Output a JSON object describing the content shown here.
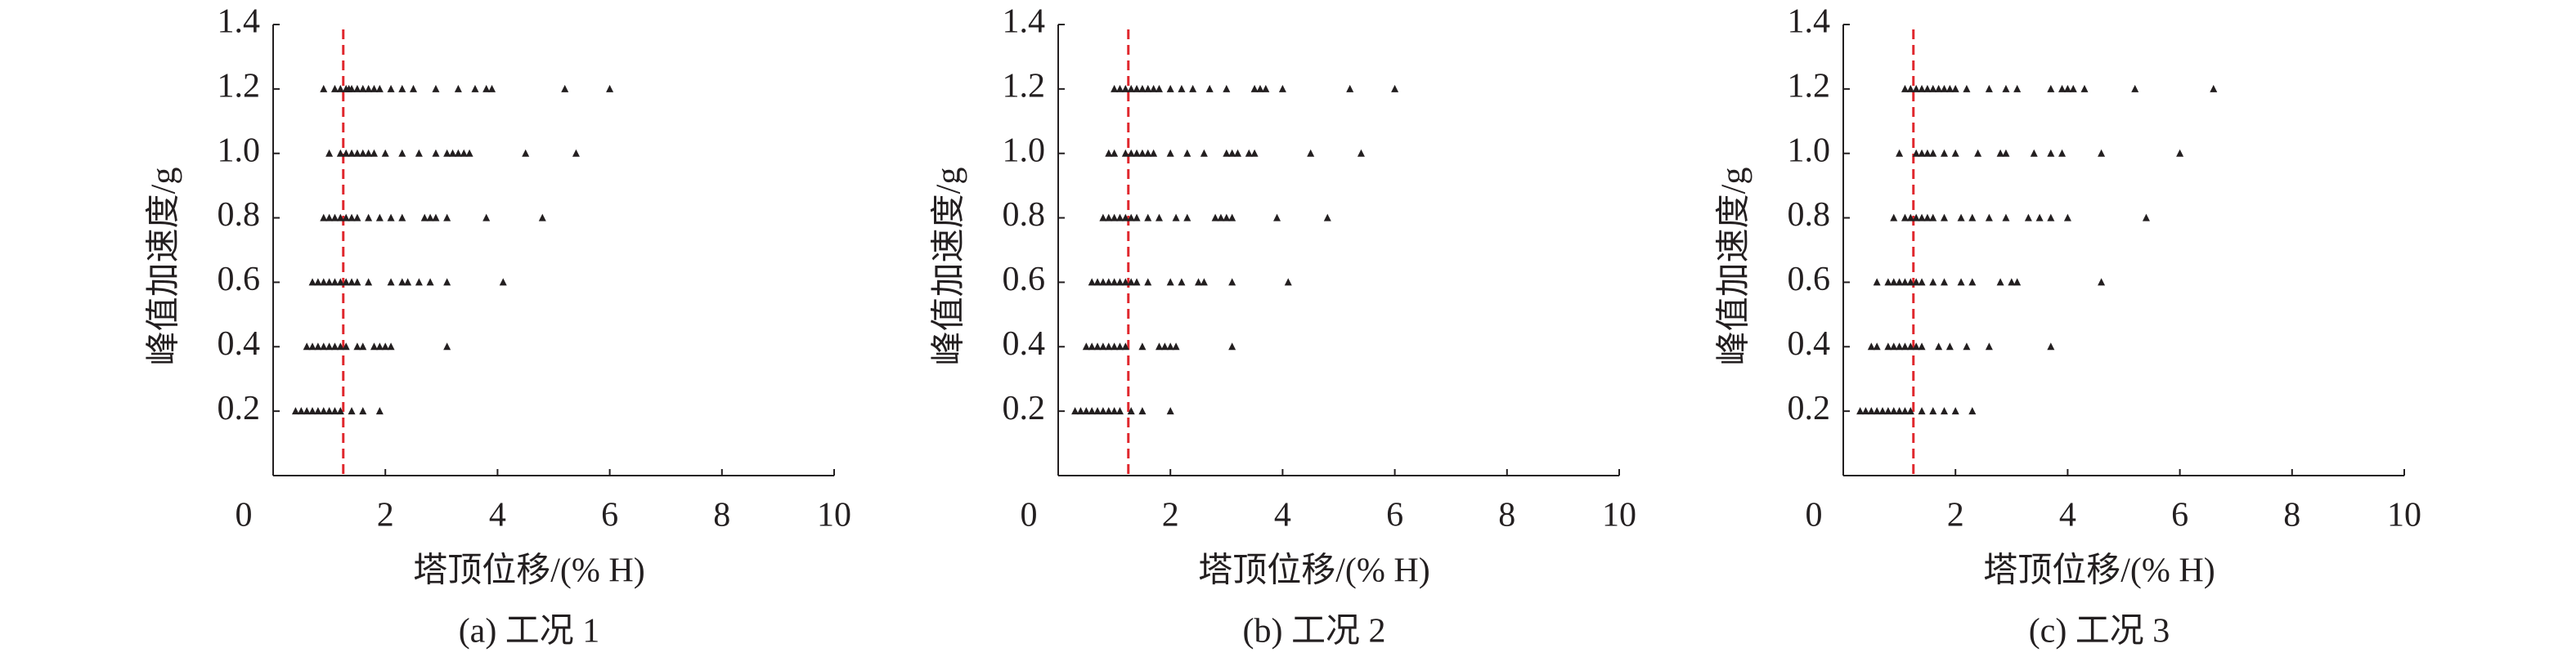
{
  "chart_data": [
    {
      "type": "scatter",
      "caption": "(a) 工况 1",
      "x_label": "塔顶位移/(% H)",
      "y_label": "峰值加速度/g",
      "xlim": [
        0,
        10
      ],
      "xticks": [
        0,
        2,
        4,
        6,
        8,
        10
      ],
      "ylim": [
        0,
        1.4
      ],
      "yticks": [
        0.2,
        0.4,
        0.6,
        0.8,
        {
          "value": 1,
          "label": "1.0"
        },
        1.2,
        1.4
      ],
      "reference_line": {
        "x": 1.25,
        "color": "#e0282e"
      },
      "marker_color": "#231f20",
      "series": [
        {
          "y": 1.2,
          "x": [
            0.9,
            1.1,
            1.2,
            1.3,
            1.35,
            1.4,
            1.5,
            1.6,
            1.7,
            1.8,
            1.9,
            2.1,
            2.3,
            2.5,
            2.9,
            3.3,
            3.6,
            3.8,
            3.9,
            5.2,
            6.0
          ]
        },
        {
          "y": 1.0,
          "x": [
            1.0,
            1.2,
            1.3,
            1.4,
            1.5,
            1.6,
            1.7,
            1.8,
            2.0,
            2.3,
            2.6,
            2.9,
            3.1,
            3.2,
            3.3,
            3.4,
            3.5,
            4.5,
            5.4
          ]
        },
        {
          "y": 0.8,
          "x": [
            0.9,
            1.0,
            1.1,
            1.2,
            1.3,
            1.4,
            1.5,
            1.7,
            1.9,
            2.1,
            2.3,
            2.7,
            2.8,
            2.9,
            3.1,
            3.8,
            4.8
          ]
        },
        {
          "y": 0.6,
          "x": [
            0.7,
            0.8,
            0.9,
            1.0,
            1.1,
            1.2,
            1.3,
            1.4,
            1.5,
            1.7,
            2.1,
            2.3,
            2.4,
            2.6,
            2.8,
            3.1,
            4.1
          ]
        },
        {
          "y": 0.4,
          "x": [
            0.6,
            0.7,
            0.8,
            0.9,
            1.0,
            1.1,
            1.2,
            1.3,
            1.5,
            1.6,
            1.8,
            1.9,
            2.0,
            2.1,
            3.1
          ]
        },
        {
          "y": 0.2,
          "x": [
            0.4,
            0.5,
            0.6,
            0.7,
            0.8,
            0.9,
            1.0,
            1.1,
            1.2,
            1.4,
            1.6,
            1.9
          ]
        }
      ]
    },
    {
      "type": "scatter",
      "caption": "(b) 工况 2",
      "x_label": "塔顶位移/(% H)",
      "y_label": "峰值加速度/g",
      "xlim": [
        0,
        10
      ],
      "xticks": [
        0,
        2,
        4,
        6,
        8,
        10
      ],
      "ylim": [
        0,
        1.4
      ],
      "yticks": [
        0.2,
        0.4,
        0.6,
        0.8,
        {
          "value": 1,
          "label": "1.0"
        },
        1.2,
        1.4
      ],
      "reference_line": {
        "x": 1.25,
        "color": "#e0282e"
      },
      "marker_color": "#231f20",
      "series": [
        {
          "y": 1.2,
          "x": [
            1.0,
            1.1,
            1.2,
            1.3,
            1.4,
            1.5,
            1.6,
            1.7,
            1.8,
            2.0,
            2.2,
            2.4,
            2.7,
            3.0,
            3.5,
            3.6,
            3.7,
            4.0,
            5.2,
            6.0
          ]
        },
        {
          "y": 1.0,
          "x": [
            0.9,
            1.0,
            1.2,
            1.3,
            1.4,
            1.5,
            1.6,
            1.7,
            2.0,
            2.3,
            2.6,
            3.0,
            3.1,
            3.2,
            3.4,
            3.5,
            4.5,
            5.4
          ]
        },
        {
          "y": 0.8,
          "x": [
            0.8,
            0.9,
            1.0,
            1.1,
            1.2,
            1.3,
            1.4,
            1.6,
            1.8,
            2.1,
            2.3,
            2.8,
            2.9,
            3.0,
            3.1,
            3.9,
            4.8
          ]
        },
        {
          "y": 0.6,
          "x": [
            0.6,
            0.7,
            0.8,
            0.9,
            1.0,
            1.1,
            1.2,
            1.3,
            1.4,
            1.6,
            2.0,
            2.2,
            2.5,
            2.6,
            3.1,
            4.1
          ]
        },
        {
          "y": 0.4,
          "x": [
            0.5,
            0.6,
            0.7,
            0.8,
            0.9,
            1.0,
            1.1,
            1.2,
            1.5,
            1.8,
            1.9,
            2.0,
            2.1,
            3.1
          ]
        },
        {
          "y": 0.2,
          "x": [
            0.3,
            0.4,
            0.5,
            0.6,
            0.7,
            0.8,
            0.9,
            1.0,
            1.1,
            1.3,
            1.5,
            2.0
          ]
        }
      ]
    },
    {
      "type": "scatter",
      "caption": "(c) 工况 3",
      "x_label": "塔顶位移/(% H)",
      "y_label": "峰值加速度/g",
      "xlim": [
        0,
        10
      ],
      "xticks": [
        0,
        2,
        4,
        6,
        8,
        10
      ],
      "ylim": [
        0,
        1.4
      ],
      "yticks": [
        0.2,
        0.4,
        0.6,
        0.8,
        {
          "value": 1,
          "label": "1.0"
        },
        1.2,
        1.4
      ],
      "reference_line": {
        "x": 1.25,
        "color": "#e0282e"
      },
      "marker_color": "#231f20",
      "series": [
        {
          "y": 1.2,
          "x": [
            1.1,
            1.2,
            1.3,
            1.4,
            1.5,
            1.6,
            1.7,
            1.8,
            1.9,
            2.0,
            2.2,
            2.6,
            2.9,
            3.1,
            3.7,
            3.9,
            4.0,
            4.1,
            4.3,
            5.2,
            6.6
          ]
        },
        {
          "y": 1.0,
          "x": [
            1.0,
            1.3,
            1.4,
            1.5,
            1.6,
            1.8,
            2.0,
            2.4,
            2.8,
            2.9,
            3.4,
            3.7,
            3.9,
            4.6,
            6.0
          ]
        },
        {
          "y": 0.8,
          "x": [
            0.9,
            1.1,
            1.2,
            1.3,
            1.4,
            1.5,
            1.6,
            1.8,
            2.1,
            2.3,
            2.6,
            2.9,
            3.3,
            3.5,
            3.7,
            4.0,
            5.4
          ]
        },
        {
          "y": 0.6,
          "x": [
            0.6,
            0.8,
            0.9,
            1.0,
            1.1,
            1.2,
            1.3,
            1.4,
            1.6,
            1.8,
            2.1,
            2.3,
            2.8,
            3.0,
            3.1,
            4.6
          ]
        },
        {
          "y": 0.4,
          "x": [
            0.5,
            0.6,
            0.8,
            0.9,
            1.0,
            1.1,
            1.2,
            1.3,
            1.4,
            1.7,
            1.9,
            2.2,
            2.6,
            3.7
          ]
        },
        {
          "y": 0.2,
          "x": [
            0.3,
            0.4,
            0.5,
            0.6,
            0.7,
            0.8,
            0.9,
            1.0,
            1.1,
            1.2,
            1.4,
            1.6,
            1.8,
            2.0,
            2.3
          ]
        }
      ]
    }
  ]
}
